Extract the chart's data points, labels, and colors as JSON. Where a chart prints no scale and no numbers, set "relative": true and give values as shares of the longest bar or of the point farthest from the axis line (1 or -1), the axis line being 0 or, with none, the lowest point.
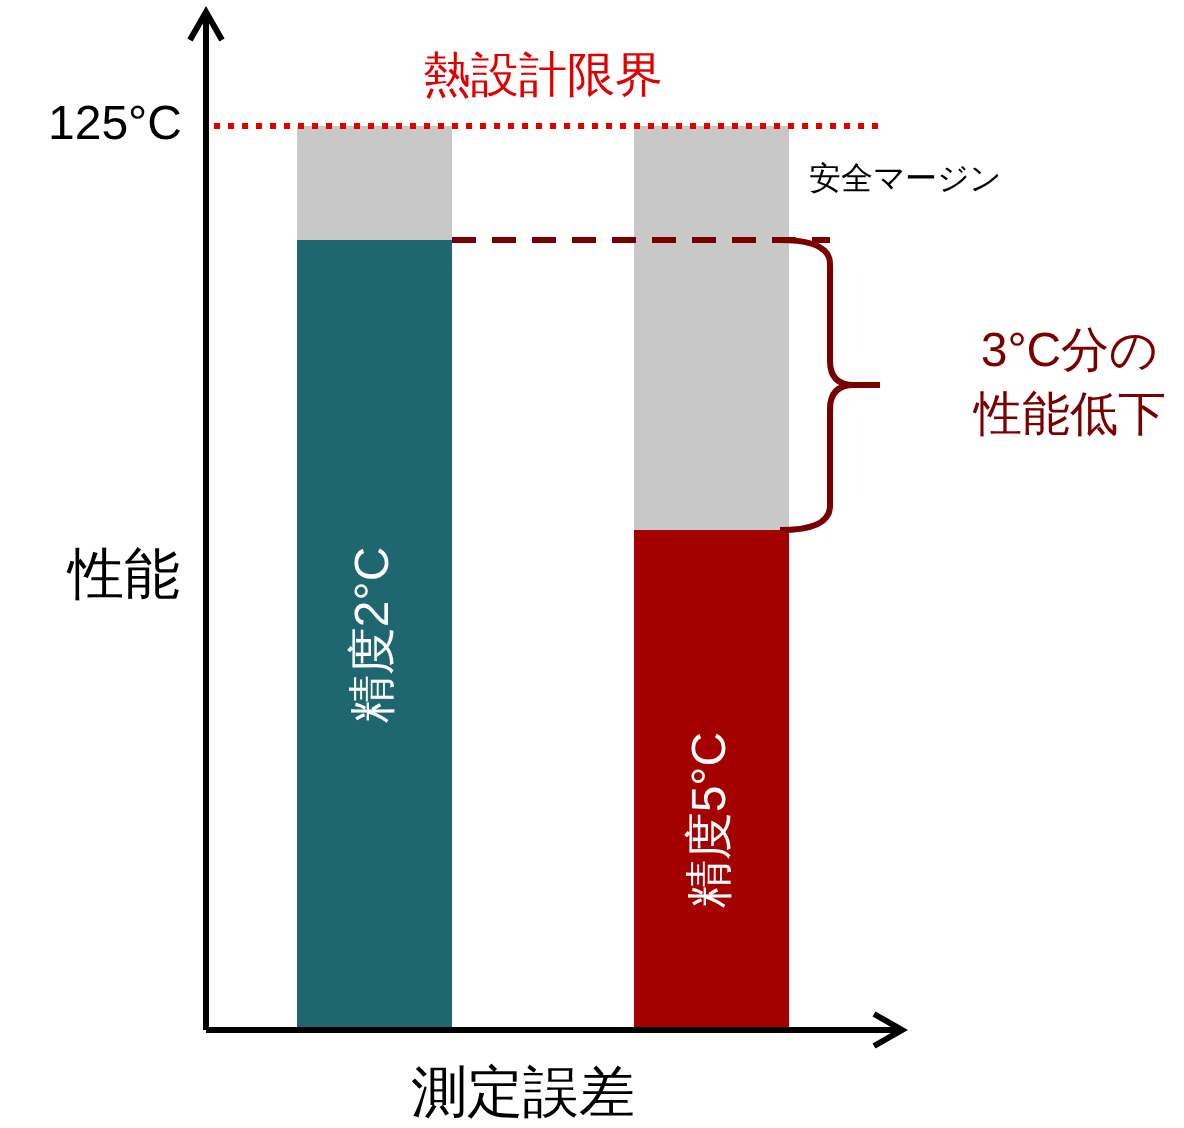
{
  "chart_data": {
    "type": "bar",
    "relative": true,
    "stacked": true,
    "xlabel": "測定誤差",
    "ylabel": "性能",
    "legend": false,
    "categories": [
      "精度2°C",
      "精度5°C"
    ],
    "series": [
      {
        "colors": [
          "#1e6670",
          "#a50000"
        ],
        "values": [
          0.874,
          0.553
        ]
      },
      {
        "name": "安全マージン",
        "color": "#c8c8c8",
        "values": [
          0.126,
          0.447
        ]
      }
    ],
    "ref_lines": [
      {
        "axis": "y",
        "value": 1,
        "label": "熱設計限界",
        "color": "#e00000",
        "line_style": "dotted"
      },
      {
        "axis": "y",
        "value": 0.874,
        "color": "#7a0000",
        "line_style": "dashed"
      }
    ],
    "annotations": [
      "125°C",
      "3°C分の",
      "性能低下"
    ]
  }
}
